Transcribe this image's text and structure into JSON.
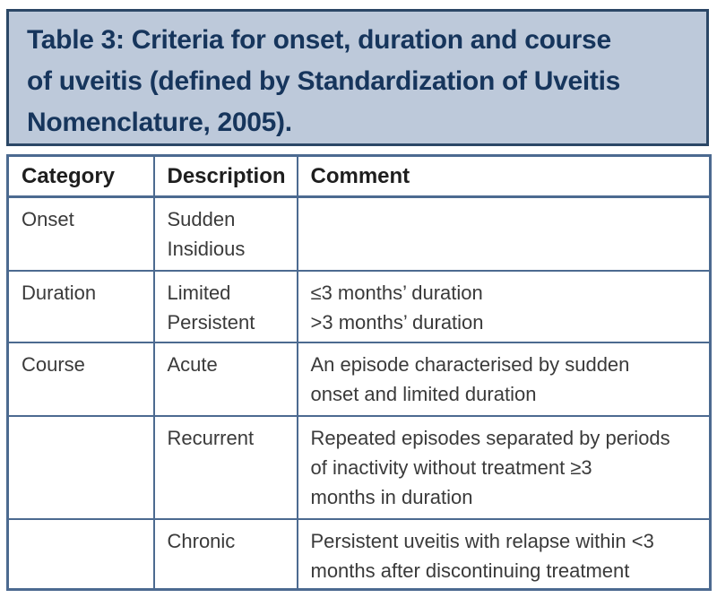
{
  "title_box": {
    "title": "Table 3: Criteria for onset, duration and course\nof uveitis (defined by Standardization of Uveitis\nNomenclature, 2005)."
  },
  "table": {
    "headers": [
      "Category",
      "Description",
      "Comment"
    ],
    "rows": [
      {
        "category": "Onset",
        "description": "Sudden\nInsidious",
        "comment": ""
      },
      {
        "category": "Duration",
        "description": "Limited\nPersistent",
        "comment": "≤3 months’ duration\n>3 months’ duration"
      },
      {
        "category": "Course",
        "description": "Acute",
        "comment": "An episode characterised by sudden\nonset and limited duration"
      },
      {
        "category": "",
        "description": "Recurrent",
        "comment": "Repeated episodes separated by periods\nof inactivity without treatment ≥3\nmonths in duration"
      },
      {
        "category": "",
        "description": "Chronic",
        "comment": "Persistent uveitis with relapse within <3\nmonths after discontinuing treatment"
      }
    ]
  },
  "colors": {
    "title_box_background": "#bdc9da",
    "title_box_border": "#2b4766",
    "title_text": "#16355c",
    "table_border": "#4c6a90",
    "header_text": "#1e1e1e",
    "body_text": "#3a3a3a"
  }
}
